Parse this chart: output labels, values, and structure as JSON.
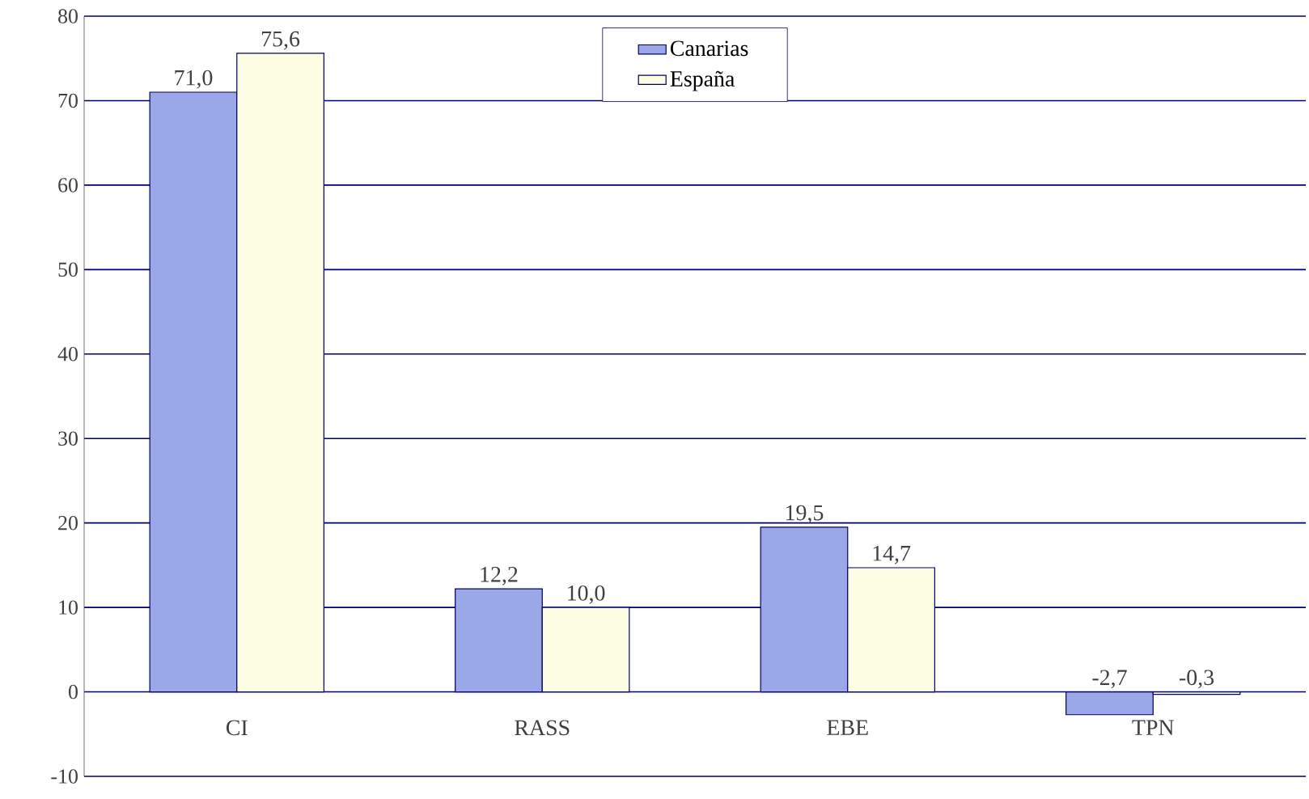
{
  "chart_data": {
    "type": "bar",
    "categories": [
      "CI",
      "RASS",
      "EBE",
      "TPN"
    ],
    "series": [
      {
        "name": "Canarias",
        "color": "#9ba8e8",
        "values": [
          71.0,
          12.2,
          19.5,
          -2.7
        ],
        "value_labels": [
          "71,0",
          "12,2",
          "19,5",
          "-2,7"
        ]
      },
      {
        "name": "España",
        "color": "#fdfde4",
        "values": [
          75.6,
          10.0,
          14.7,
          -0.3
        ],
        "value_labels": [
          "75,6",
          "10,0",
          "14,7",
          "-0,3"
        ]
      }
    ],
    "ylim": [
      -10,
      80
    ],
    "yticks": [
      -10,
      0,
      10,
      20,
      30,
      40,
      50,
      60,
      70,
      80
    ],
    "grid": "y",
    "legend": "top"
  }
}
